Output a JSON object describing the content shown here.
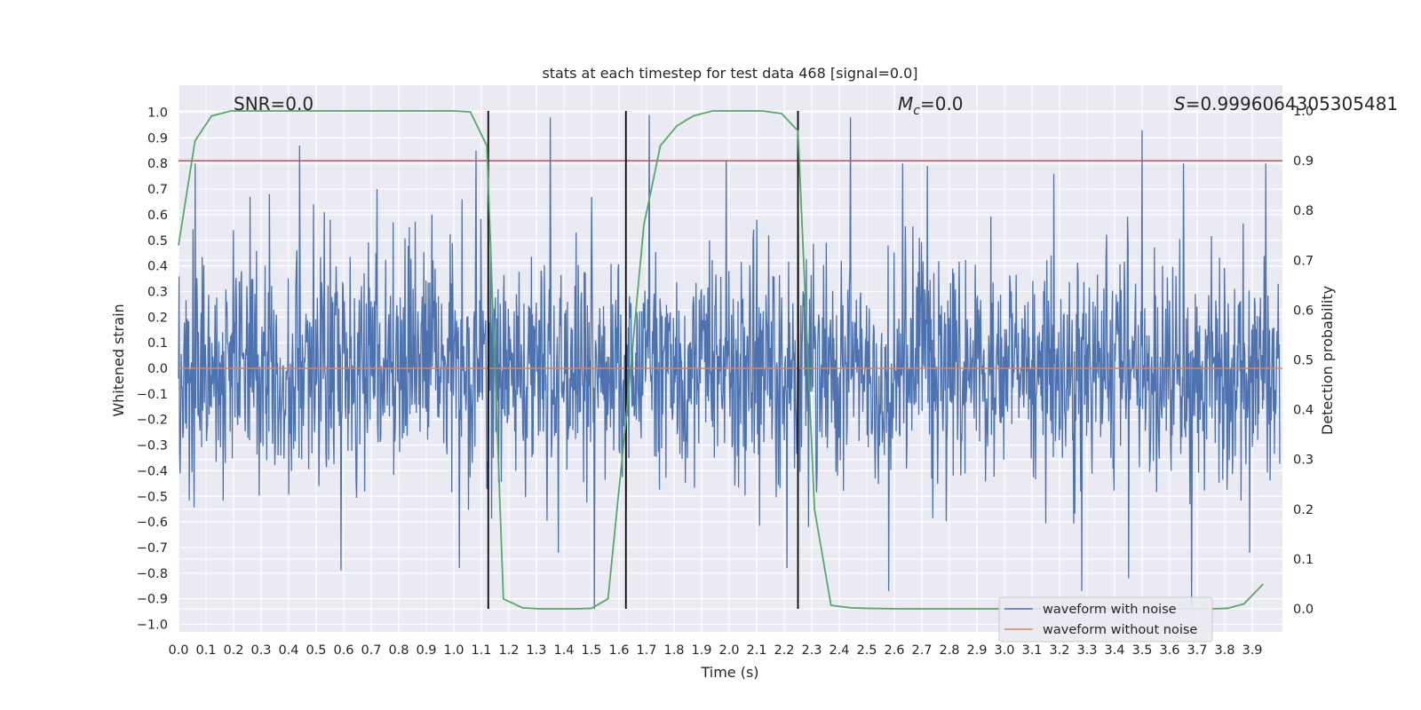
{
  "chart_data": {
    "type": "line",
    "title": "stats at each timestep for test data 468 [signal=0.0]",
    "xlabel": "Time (s)",
    "ylabel": "Whitened strain",
    "y2label": "Detection probability",
    "xlim": [
      0.0,
      4.0
    ],
    "ylim": [
      -1.05,
      1.05
    ],
    "y2lim": [
      -0.05,
      1.05
    ],
    "grid": true,
    "x_ticks": [
      "0.0",
      "0.1",
      "0.2",
      "0.3",
      "0.4",
      "0.5",
      "0.6",
      "0.7",
      "0.8",
      "0.9",
      "1.0",
      "1.1",
      "1.2",
      "1.3",
      "1.4",
      "1.5",
      "1.6",
      "1.7",
      "1.8",
      "1.9",
      "2.0",
      "2.1",
      "2.2",
      "2.3",
      "2.4",
      "2.5",
      "2.6",
      "2.7",
      "2.8",
      "2.9",
      "3.0",
      "3.1",
      "3.2",
      "3.3",
      "3.4",
      "3.5",
      "3.6",
      "3.7",
      "3.8",
      "3.9"
    ],
    "y_ticks": [
      "1.0",
      "0.9",
      "0.8",
      "0.7",
      "0.6",
      "0.5",
      "0.4",
      "0.3",
      "0.2",
      "0.1",
      "0.0",
      "−0.1",
      "−0.2",
      "−0.3",
      "−0.4",
      "−0.5",
      "−0.6",
      "−0.7",
      "−0.8",
      "−0.9",
      "−1.0"
    ],
    "y2_ticks": [
      "1.0",
      "0.9",
      "0.8",
      "0.7",
      "0.6",
      "0.5",
      "0.4",
      "0.3",
      "0.2",
      "0.1",
      "0.0"
    ],
    "annotations": {
      "snr": "SNR=0.0",
      "mc_symbol": "M",
      "mc_sub": "c",
      "mc_value": "=0.0",
      "s_symbol": "S",
      "s_value": "=0.9996064305305481"
    },
    "legend": {
      "placement": "lower right",
      "entries": [
        {
          "label": "waveform with noise",
          "color": "#4c72b0"
        },
        {
          "label": "waveform without noise",
          "color": "#dd8452"
        }
      ]
    },
    "series": [
      {
        "name": "waveform with noise",
        "axis": "left",
        "color": "#4c72b0",
        "noise": {
          "n": 2048,
          "seed": 468,
          "sigma": 0.22,
          "spikes": [
            [
              0.06,
              0.8
            ],
            [
              0.2,
              0.54
            ],
            [
              0.26,
              0.67
            ],
            [
              0.33,
              0.68
            ],
            [
              0.44,
              0.87
            ],
            [
              0.49,
              0.64
            ],
            [
              0.53,
              0.61
            ],
            [
              0.78,
              0.57
            ],
            [
              0.92,
              0.6
            ],
            [
              1.03,
              0.66
            ],
            [
              1.08,
              0.85
            ],
            [
              1.35,
              0.98
            ],
            [
              1.5,
              0.67
            ],
            [
              1.71,
              0.99
            ],
            [
              1.99,
              0.81
            ],
            [
              2.1,
              0.58
            ],
            [
              2.44,
              0.98
            ],
            [
              2.63,
              0.8
            ],
            [
              2.72,
              0.79
            ],
            [
              3.18,
              0.76
            ],
            [
              3.5,
              0.93
            ],
            [
              3.65,
              0.8
            ],
            [
              3.95,
              0.8
            ],
            [
              0.59,
              -0.79
            ],
            [
              1.02,
              -0.78
            ],
            [
              1.38,
              -0.72
            ],
            [
              1.51,
              -0.94
            ],
            [
              2.21,
              -0.78
            ],
            [
              2.58,
              -0.87
            ],
            [
              3.28,
              -0.87
            ],
            [
              3.45,
              -0.82
            ],
            [
              3.68,
              -0.93
            ],
            [
              3.89,
              -0.72
            ]
          ]
        }
      },
      {
        "name": "waveform without noise",
        "axis": "left",
        "color": "#dd8452",
        "x": [
          0.0,
          4.0
        ],
        "y": [
          0.0,
          0.0
        ]
      },
      {
        "name": "",
        "axis": "right",
        "color": "#55a868",
        "x": [
          0.0,
          0.06,
          0.12,
          0.19,
          0.25,
          0.38,
          0.5,
          0.62,
          0.75,
          0.87,
          1.0,
          1.06,
          1.12,
          1.18,
          1.25,
          1.31,
          1.37,
          1.44,
          1.5,
          1.56,
          1.62,
          1.69,
          1.75,
          1.81,
          1.87,
          1.94,
          2.0,
          2.06,
          2.12,
          2.19,
          2.25,
          2.31,
          2.37,
          2.44,
          2.5,
          2.62,
          2.75,
          2.87,
          3.0,
          3.12,
          3.25,
          3.37,
          3.5,
          3.62,
          3.75,
          3.81,
          3.87,
          3.94
        ],
        "y": [
          0.73,
          0.94,
          0.99,
          1.0,
          1.0,
          1.0,
          1.0,
          1.0,
          1.0,
          1.0,
          1.0,
          0.998,
          0.93,
          0.02,
          0.002,
          0.0,
          0.0,
          0.0,
          0.001,
          0.02,
          0.35,
          0.77,
          0.93,
          0.97,
          0.99,
          1.0,
          1.0,
          1.0,
          1.0,
          0.995,
          0.96,
          0.2,
          0.007,
          0.002,
          0.001,
          0.0,
          0.0,
          0.0,
          0.0,
          0.0,
          0.0,
          0.0,
          0.0,
          0.0,
          0.0,
          0.001,
          0.01,
          0.05
        ]
      }
    ],
    "threshold_line": {
      "axis": "right",
      "y": 0.9,
      "color": "#c44e52"
    },
    "vertical_lines": {
      "x": [
        1.125,
        1.625,
        2.25
      ],
      "color": "#000000"
    }
  }
}
